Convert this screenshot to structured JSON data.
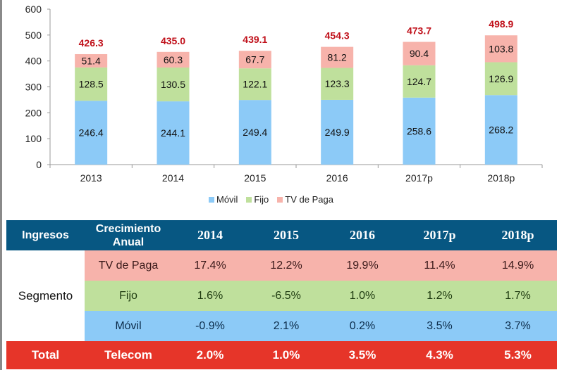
{
  "chart_data": {
    "type": "bar",
    "stacked": true,
    "title": "",
    "xlabel": "",
    "ylabel": "",
    "categories": [
      "2013",
      "2014",
      "2015",
      "2016",
      "2017p",
      "2018p"
    ],
    "series": [
      {
        "name": "Móvil",
        "color": "#8ccaf7",
        "values": [
          246.4,
          244.1,
          249.4,
          249.9,
          258.6,
          268.2
        ]
      },
      {
        "name": "Fijo",
        "color": "#bfe09c",
        "values": [
          128.5,
          130.5,
          122.1,
          123.3,
          124.7,
          126.9
        ]
      },
      {
        "name": "TV de Paga",
        "color": "#f7b3ab",
        "values": [
          51.4,
          60.3,
          67.7,
          81.2,
          90.4,
          103.8
        ]
      }
    ],
    "totals": [
      "426.3",
      "435.0",
      "439.1",
      "454.3",
      "473.7",
      "498.9"
    ],
    "ylim": [
      0,
      600
    ],
    "yticks": [
      0,
      100,
      200,
      300,
      400,
      500,
      600
    ],
    "grid": false,
    "legend": "bottom-center"
  },
  "table": {
    "headers": [
      "Ingresos",
      "Crecimiento Anual",
      "2014",
      "2015",
      "2016",
      "2017p",
      "2018p"
    ],
    "header_line1": "Crecimiento",
    "header_line2": "Anual",
    "segment_label": "Segmento",
    "rows": [
      {
        "name": "TV de Paga",
        "values": [
          "17.4%",
          "12.2%",
          "19.9%",
          "11.4%",
          "14.9%"
        ]
      },
      {
        "name": "Fijo",
        "values": [
          "1.6%",
          "-6.5%",
          "1.0%",
          "1.2%",
          "1.7%"
        ]
      },
      {
        "name": "Móvil",
        "values": [
          "-0.9%",
          "2.1%",
          "0.2%",
          "3.5%",
          "3.7%"
        ]
      }
    ],
    "total": {
      "label": "Total",
      "name": "Telecom",
      "values": [
        "2.0%",
        "1.0%",
        "3.5%",
        "4.3%",
        "5.3%"
      ]
    },
    "colors": {
      "header": "#075782",
      "tv": "#f7b3ab",
      "fijo": "#bfe09c",
      "movil": "#8ccaf7",
      "total": "#e63529"
    }
  }
}
